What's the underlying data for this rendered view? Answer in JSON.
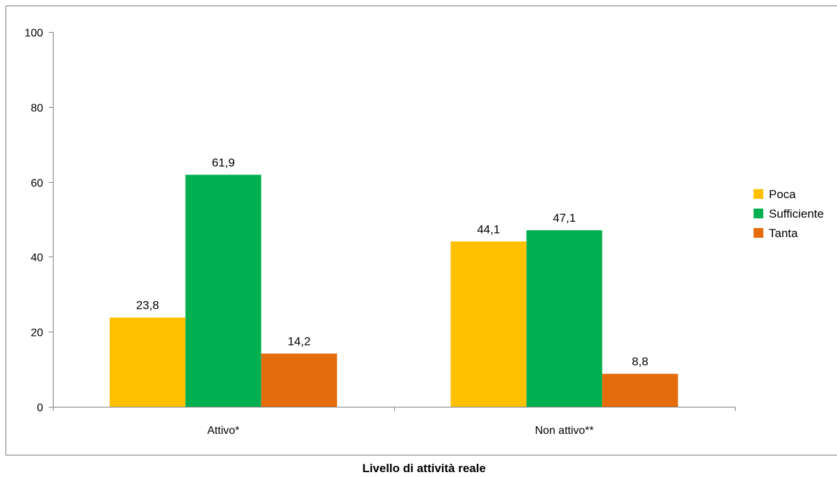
{
  "chart_data": {
    "type": "bar",
    "categories": [
      "Attivo*",
      "Non attivo**"
    ],
    "series": [
      {
        "name": "Poca",
        "values": [
          23.8,
          44.1
        ],
        "color": "#FFC000"
      },
      {
        "name": "Sufficiente",
        "values": [
          61.9,
          47.1
        ],
        "color": "#00B050"
      },
      {
        "name": "Tanta",
        "values": [
          14.2,
          8.8
        ],
        "color": "#E46C0A"
      }
    ],
    "data_labels": [
      [
        "23,8",
        "44,1"
      ],
      [
        "61,9",
        "47,1"
      ],
      [
        "14,2",
        "8,8"
      ]
    ],
    "xlabel": "Livello di attività reale",
    "ylabel": "",
    "ylim": [
      0,
      100
    ],
    "yticks": [
      0,
      20,
      40,
      60,
      80,
      100
    ],
    "grid": false,
    "legend": "right"
  }
}
